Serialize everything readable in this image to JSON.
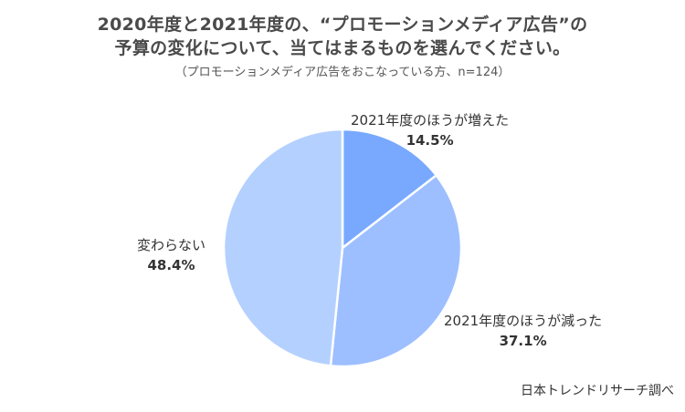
{
  "header": {
    "title_line1": "2020年度と2021年度の、“プロモーションメディア広告”の",
    "title_line2": "予算の変化について、当てはまるものを選んでください。",
    "subtitle": "（プロモーションメディア広告をおこなっている方、n=124）"
  },
  "chart_data": {
    "type": "pie",
    "start": "12 o'clock",
    "direction": "clockwise",
    "slices": [
      {
        "label": "2021年度のほうが増えた",
        "value": 14.5,
        "value_label": "14.5%",
        "color": "#78a9ff"
      },
      {
        "label": "2021年度のほうが減った",
        "value": 37.1,
        "value_label": "37.1%",
        "color": "#9dbfff"
      },
      {
        "label": "変わらない",
        "value": 48.4,
        "value_label": "48.4%",
        "color": "#b4d0ff"
      }
    ]
  },
  "footer": {
    "source": "日本トレンドリサーチ調べ"
  }
}
